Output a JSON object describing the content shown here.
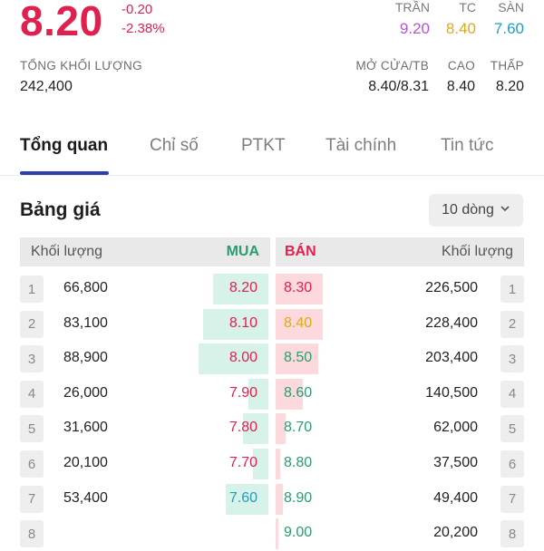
{
  "quote": {
    "price": "8.20",
    "change": "-0.20",
    "change_pct": "-2.38%",
    "price_color": "#e0214f"
  },
  "limits": [
    {
      "label": "TRẦN",
      "value": "9.20",
      "color": "#b453d6"
    },
    {
      "label": "TC",
      "value": "8.40",
      "color": "#e0a81b"
    },
    {
      "label": "SÀN",
      "value": "7.60",
      "color": "#1f9bc4"
    }
  ],
  "stats": {
    "total_volume_label": "TỔNG KHỐI LƯỢNG",
    "total_volume": "242,400",
    "open_avg_label": "MỞ CỬA/TB",
    "open_avg": "8.40/8.31",
    "high_label": "CAO",
    "high": "8.40",
    "low_label": "THẤP",
    "low": "8.20"
  },
  "tabs": [
    {
      "label": "Tổng quan",
      "active": true
    },
    {
      "label": "Chỉ số",
      "active": false
    },
    {
      "label": "PTKT",
      "active": false
    },
    {
      "label": "Tài chính",
      "active": false
    },
    {
      "label": "Tin tức",
      "active": false
    }
  ],
  "price_board": {
    "title": "Bảng giá",
    "rows_selector": "10 dòng",
    "header": {
      "bid_volume": "Khối lượng",
      "bid": "MUA",
      "ask": "BÁN",
      "ask_volume": "Khối lượng"
    },
    "colors": {
      "up_green": "#2a9d6e",
      "down_red": "#e0214f",
      "ref_yellow": "#e0a81b",
      "floor_cyan": "#1f9bc4",
      "bid_bar": "#d7f2e9",
      "ask_bar": "#fbd9dc"
    },
    "rows": [
      {
        "index": "1",
        "bid_volume": "66,800",
        "bid_price": "8.20",
        "bid_color": "down",
        "bid_fill": 0.22,
        "ask_price": "8.30",
        "ask_color": "down",
        "ask_fill": 0.19,
        "ask_volume": "226,500",
        "ask_index": "1"
      },
      {
        "index": "2",
        "bid_volume": "83,100",
        "bid_price": "8.10",
        "bid_color": "down",
        "bid_fill": 0.26,
        "ask_price": "8.40",
        "ask_color": "ref",
        "ask_fill": 0.19,
        "ask_volume": "228,400",
        "ask_index": "2"
      },
      {
        "index": "3",
        "bid_volume": "88,900",
        "bid_price": "8.00",
        "bid_color": "down",
        "bid_fill": 0.28,
        "ask_price": "8.50",
        "ask_color": "up",
        "ask_fill": 0.17,
        "ask_volume": "203,400",
        "ask_index": "3"
      },
      {
        "index": "4",
        "bid_volume": "26,000",
        "bid_price": "7.90",
        "bid_color": "down",
        "bid_fill": 0.08,
        "ask_price": "8.60",
        "ask_color": "up",
        "ask_fill": 0.11,
        "ask_volume": "140,500",
        "ask_index": "4"
      },
      {
        "index": "5",
        "bid_volume": "31,600",
        "bid_price": "7.80",
        "bid_color": "down",
        "bid_fill": 0.1,
        "ask_price": "8.70",
        "ask_color": "up",
        "ask_fill": 0.04,
        "ask_volume": "62,000",
        "ask_index": "5"
      },
      {
        "index": "6",
        "bid_volume": "20,100",
        "bid_price": "7.70",
        "bid_color": "down",
        "bid_fill": 0.06,
        "ask_price": "8.80",
        "ask_color": "up",
        "ask_fill": 0.02,
        "ask_volume": "37,500",
        "ask_index": "6"
      },
      {
        "index": "7",
        "bid_volume": "53,400",
        "bid_price": "7.60",
        "bid_color": "floor",
        "bid_fill": 0.17,
        "ask_price": "8.90",
        "ask_color": "up",
        "ask_fill": 0.03,
        "ask_volume": "49,400",
        "ask_index": "7"
      },
      {
        "index": "8",
        "bid_volume": "",
        "bid_price": "",
        "bid_color": "down",
        "bid_fill": 0,
        "ask_price": "9.00",
        "ask_color": "up",
        "ask_fill": 0.01,
        "ask_volume": "20,200",
        "ask_index": "8"
      }
    ]
  }
}
